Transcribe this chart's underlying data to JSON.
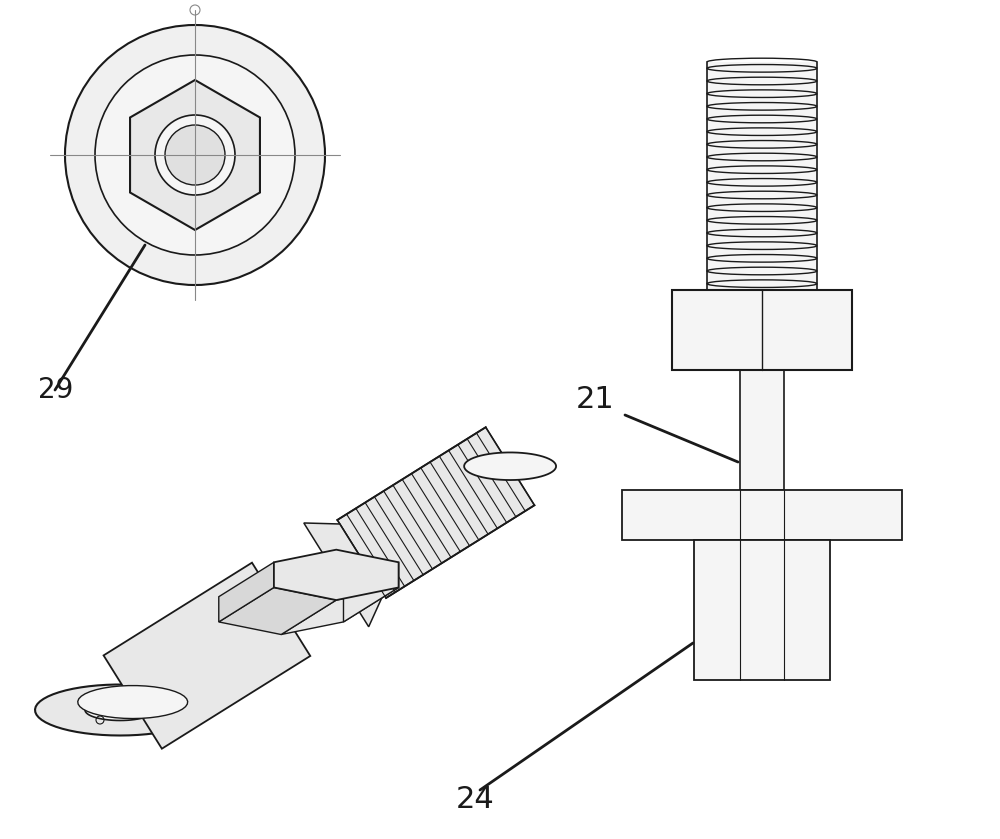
{
  "bg_color": "#ffffff",
  "lc": "#1a1a1a",
  "gc": "#aaaaaa",
  "fc_light": "#f5f5f5",
  "fc_mid": "#e8e8e8",
  "fc_dark": "#d8d8d8",
  "label_21": "21",
  "label_24": "24",
  "label_29": "29",
  "figw": 10.0,
  "figh": 8.39,
  "dpi": 100
}
